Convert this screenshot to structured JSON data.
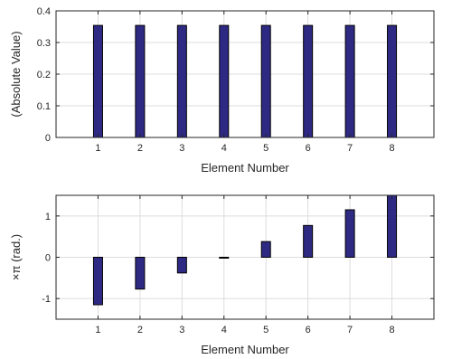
{
  "chart_data": [
    {
      "type": "bar",
      "categories": [
        "1",
        "2",
        "3",
        "4",
        "5",
        "6",
        "7",
        "8"
      ],
      "values": [
        0.354,
        0.354,
        0.354,
        0.354,
        0.354,
        0.354,
        0.354,
        0.354
      ],
      "xlabel": "Element Number",
      "ylabel": "(Absolute Value)",
      "ylim": [
        0,
        0.4
      ],
      "yticks": [
        0,
        0.1,
        0.2,
        0.3,
        0.4
      ],
      "ytick_labels": [
        "0",
        "0.1",
        "0.2",
        "0.3",
        "0.4"
      ],
      "grid": true,
      "bar_color": "#2e2a84"
    },
    {
      "type": "bar",
      "categories": [
        "1",
        "2",
        "3",
        "4",
        "5",
        "6",
        "7",
        "8"
      ],
      "values": [
        -1.15,
        -0.77,
        -0.38,
        -0.01,
        0.38,
        0.77,
        1.15,
        1.5
      ],
      "xlabel": "Element Number",
      "ylabel": "×π (rad.)",
      "ylim": [
        -1.5,
        1.5
      ],
      "yticks": [
        -1,
        0,
        1
      ],
      "ytick_labels": [
        "-1",
        "0",
        "1"
      ],
      "grid": true,
      "bar_color": "#2e2a84"
    }
  ]
}
